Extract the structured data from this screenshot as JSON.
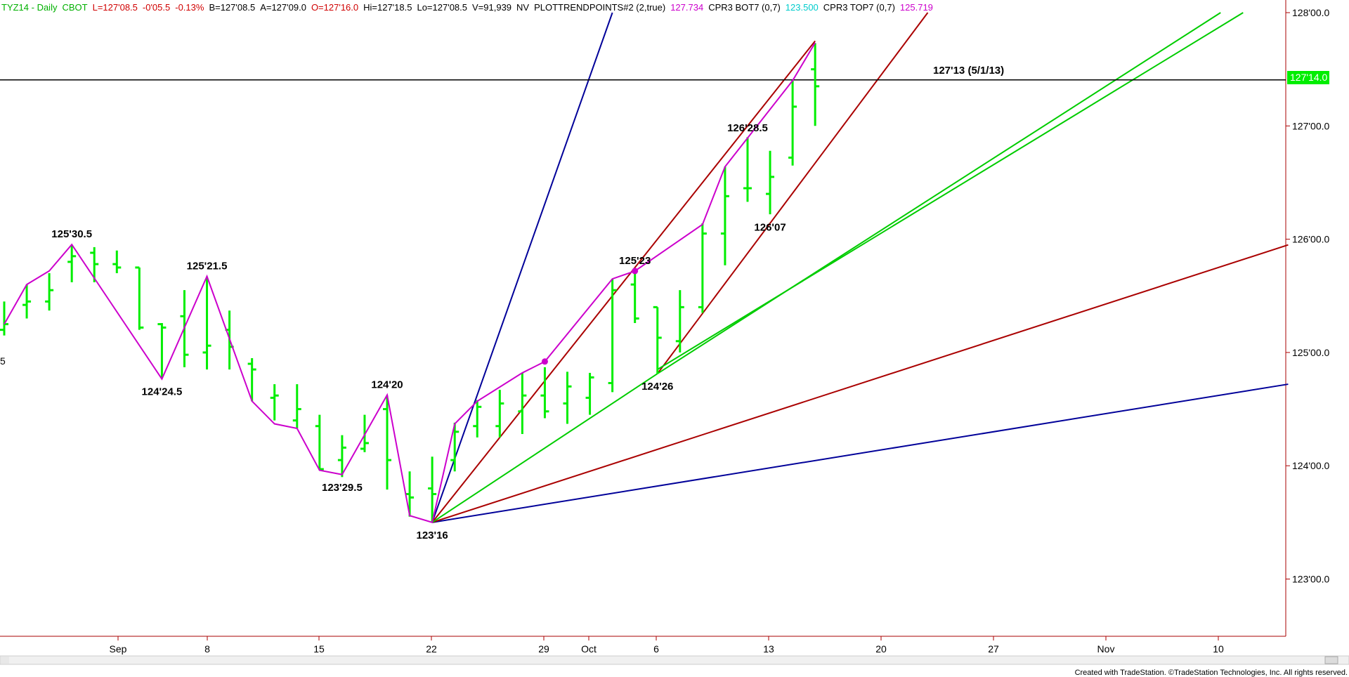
{
  "header": {
    "items": [
      {
        "text": "TYZ14 - Daily",
        "color": "#00b000"
      },
      {
        "text": "CBOT",
        "color": "#00b000"
      },
      {
        "text": "L=127'08.5",
        "color": "#d00000"
      },
      {
        "text": "-0'05.5",
        "color": "#d00000"
      },
      {
        "text": "-0.13%",
        "color": "#d00000"
      },
      {
        "text": "B=127'08.5",
        "color": "#000000"
      },
      {
        "text": "A=127'09.0",
        "color": "#000000"
      },
      {
        "text": "O=127'16.0",
        "color": "#d00000"
      },
      {
        "text": "Hi=127'18.5",
        "color": "#000000"
      },
      {
        "text": "Lo=127'08.5",
        "color": "#000000"
      },
      {
        "text": "V=91,939",
        "color": "#000000"
      },
      {
        "text": "NV",
        "color": "#000000"
      },
      {
        "text": "PLOTTRENDPOINTS#2 (2,true)",
        "color": "#000000"
      },
      {
        "text": "127.734",
        "color": "#cc00cc"
      },
      {
        "text": "CPR3 BOT7 (0,7)",
        "color": "#000000"
      },
      {
        "text": "123.500",
        "color": "#00cccc"
      },
      {
        "text": "CPR3 TOP7 (0,7)",
        "color": "#000000"
      },
      {
        "text": "125.719",
        "color": "#cc00cc"
      }
    ]
  },
  "footer": {
    "credit": "Created with TradeStation. ©TradeStation Technologies, Inc. All rights reserved."
  },
  "colors": {
    "bars": "#00ee00",
    "swing": "#cc00cc",
    "blue": "#000099",
    "red": "#aa0000",
    "green": "#00cc00",
    "current_price_bg": "#00ee00"
  },
  "chart_data": {
    "type": "ohlc",
    "title": "TYZ14 - Daily",
    "y_axis": {
      "range": [
        "122'16",
        "128'00"
      ],
      "ticks": [
        "128'00.0",
        "127'00.0",
        "126'00.0",
        "125'00.0",
        "124'00.0",
        "123'00.0"
      ]
    },
    "x_axis": {
      "tick_labels": [
        "Sep",
        "8",
        "15",
        "22",
        "29",
        "Oct",
        "6",
        "13",
        "20",
        "27",
        "Nov",
        "10"
      ]
    },
    "left_edge_label": "5",
    "current_price_label": "127'14.0",
    "bars": [
      {
        "slot": 0,
        "o": 125.2,
        "h": 125.45,
        "l": 125.15,
        "c": 125.25
      },
      {
        "slot": 1,
        "o": 125.42,
        "h": 125.6,
        "l": 125.3,
        "c": 125.45
      },
      {
        "slot": 2,
        "o": 125.45,
        "h": 125.7,
        "l": 125.37,
        "c": 125.55
      },
      {
        "slot": 3,
        "o": 125.8,
        "h": 125.95,
        "l": 125.62,
        "c": 125.85
      },
      {
        "slot": 4,
        "o": 125.88,
        "h": 125.93,
        "l": 125.62,
        "c": 125.78
      },
      {
        "slot": 5,
        "o": 125.78,
        "h": 125.9,
        "l": 125.7,
        "c": 125.75
      },
      {
        "slot": 6,
        "o": 125.75,
        "h": 125.75,
        "l": 125.2,
        "c": 125.22
      },
      {
        "slot": 7,
        "o": 125.25,
        "h": 125.26,
        "l": 124.77,
        "c": 125.22
      },
      {
        "slot": 8,
        "o": 125.32,
        "h": 125.55,
        "l": 124.87,
        "c": 124.98
      },
      {
        "slot": 9,
        "o": 125.0,
        "h": 125.67,
        "l": 124.85,
        "c": 125.06
      },
      {
        "slot": 10,
        "o": 125.2,
        "h": 125.37,
        "l": 124.85,
        "c": 125.05
      },
      {
        "slot": 11,
        "o": 124.9,
        "h": 124.95,
        "l": 124.57,
        "c": 124.85
      },
      {
        "slot": 12,
        "o": 124.6,
        "h": 124.72,
        "l": 124.4,
        "c": 124.62
      },
      {
        "slot": 13,
        "o": 124.4,
        "h": 124.72,
        "l": 124.33,
        "c": 124.5
      },
      {
        "slot": 14,
        "o": 124.35,
        "h": 124.45,
        "l": 123.96,
        "c": 123.97
      },
      {
        "slot": 15,
        "o": 124.05,
        "h": 124.27,
        "l": 123.9,
        "c": 124.16
      },
      {
        "slot": 16,
        "o": 124.15,
        "h": 124.45,
        "l": 124.12,
        "c": 124.2
      },
      {
        "slot": 17,
        "o": 124.5,
        "h": 124.62,
        "l": 123.79,
        "c": 124.05
      },
      {
        "slot": 18,
        "o": 123.75,
        "h": 123.95,
        "l": 123.55,
        "c": 123.72
      },
      {
        "slot": 19,
        "o": 123.8,
        "h": 124.08,
        "l": 123.5,
        "c": 123.75
      },
      {
        "slot": 20,
        "o": 124.05,
        "h": 124.38,
        "l": 123.95,
        "c": 124.3
      },
      {
        "slot": 21,
        "o": 124.35,
        "h": 124.58,
        "l": 124.25,
        "c": 124.52
      },
      {
        "slot": 22,
        "o": 124.35,
        "h": 124.67,
        "l": 124.25,
        "c": 124.55
      },
      {
        "slot": 23,
        "o": 124.48,
        "h": 124.82,
        "l": 124.28,
        "c": 124.62
      },
      {
        "slot": 24,
        "o": 124.62,
        "h": 124.87,
        "l": 124.42,
        "c": 124.48
      },
      {
        "slot": 25,
        "o": 124.55,
        "h": 124.83,
        "l": 124.37,
        "c": 124.7
      },
      {
        "slot": 26,
        "o": 124.6,
        "h": 124.82,
        "l": 124.45,
        "c": 124.78
      },
      {
        "slot": 27,
        "o": 124.73,
        "h": 125.65,
        "l": 124.65,
        "c": 125.55
      },
      {
        "slot": 28,
        "o": 125.6,
        "h": 125.71,
        "l": 125.26,
        "c": 125.3
      },
      {
        "slot": 29,
        "o": 125.4,
        "h": 125.4,
        "l": 124.81,
        "c": 125.13
      },
      {
        "slot": 30,
        "o": 125.1,
        "h": 125.55,
        "l": 125.0,
        "c": 125.4
      },
      {
        "slot": 31,
        "o": 125.4,
        "h": 126.14,
        "l": 125.35,
        "c": 126.05
      },
      {
        "slot": 32,
        "o": 126.05,
        "h": 126.64,
        "l": 125.77,
        "c": 126.38
      },
      {
        "slot": 33,
        "o": 126.45,
        "h": 126.9,
        "l": 126.33,
        "c": 126.45
      },
      {
        "slot": 34,
        "o": 126.4,
        "h": 126.78,
        "l": 126.22,
        "c": 126.55
      },
      {
        "slot": 35,
        "o": 126.72,
        "h": 127.4,
        "l": 126.65,
        "c": 127.17
      },
      {
        "slot": 36,
        "o": 127.5,
        "h": 127.73,
        "l": 127.0,
        "c": 127.35
      }
    ],
    "swing_labels": [
      {
        "text": "125'30.5",
        "slot": 3,
        "price": 125.953,
        "pos": "above"
      },
      {
        "text": "124'24.5",
        "slot": 7,
        "price": 124.766,
        "pos": "below"
      },
      {
        "text": "125'21.5",
        "slot": 9,
        "price": 125.672,
        "pos": "above"
      },
      {
        "text": "123'29.5",
        "slot": 15,
        "price": 123.922,
        "pos": "below"
      },
      {
        "text": "124'20",
        "slot": 17,
        "price": 124.625,
        "pos": "above"
      },
      {
        "text": "123'16",
        "slot": 19,
        "price": 123.5,
        "pos": "below"
      },
      {
        "text": "125'23",
        "slot": 28,
        "price": 125.719,
        "pos": "above"
      },
      {
        "text": "124'26",
        "slot": 29,
        "price": 124.813,
        "pos": "below"
      },
      {
        "text": "126'28.5",
        "slot": 33,
        "price": 126.891,
        "pos": "above"
      },
      {
        "text": "126'07",
        "slot": 34,
        "price": 126.219,
        "pos": "below"
      }
    ],
    "swing_line": [
      [
        0,
        125.25
      ],
      [
        1,
        125.6
      ],
      [
        2,
        125.72
      ],
      [
        3,
        125.953
      ],
      [
        7,
        124.766
      ],
      [
        9,
        125.672
      ],
      [
        11,
        124.57
      ],
      [
        12,
        124.37
      ],
      [
        13,
        124.33
      ],
      [
        14,
        123.96
      ],
      [
        15,
        123.922
      ],
      [
        17,
        124.625
      ],
      [
        18,
        123.56
      ],
      [
        19,
        123.5
      ],
      [
        20,
        124.37
      ],
      [
        21,
        124.57
      ],
      [
        23,
        124.82
      ],
      [
        24,
        124.92
      ],
      [
        27,
        125.65
      ],
      [
        28,
        125.719
      ],
      [
        31,
        126.13
      ],
      [
        32,
        126.64
      ],
      [
        35,
        127.4
      ],
      [
        36,
        127.734
      ]
    ],
    "swing_dots": [
      [
        24,
        124.92
      ],
      [
        28,
        125.719
      ]
    ],
    "horizontal_line": {
      "price": 127.406,
      "label": "127'13 (5/1/13)"
    },
    "trendlines": [
      {
        "color": "blue",
        "from": [
          19,
          123.5
        ],
        "to": [
          27,
          128.0
        ]
      },
      {
        "color": "blue",
        "from": [
          19,
          123.5
        ],
        "to": [
          57,
          124.72
        ]
      },
      {
        "color": "red",
        "from": [
          19,
          123.5
        ],
        "to": [
          36,
          127.75
        ]
      },
      {
        "color": "red",
        "from": [
          29,
          124.813
        ],
        "to": [
          41,
          128.0
        ]
      },
      {
        "color": "red",
        "from": [
          19,
          123.5
        ],
        "to": [
          57,
          125.95
        ]
      },
      {
        "color": "green",
        "from": [
          19,
          123.5
        ],
        "to": [
          29,
          124.813
        ]
      },
      {
        "color": "green",
        "from": [
          29,
          124.813
        ],
        "to": [
          54,
          128.0
        ]
      },
      {
        "color": "green",
        "from": [
          29,
          124.85
        ],
        "to": [
          55,
          128.0
        ]
      }
    ]
  }
}
